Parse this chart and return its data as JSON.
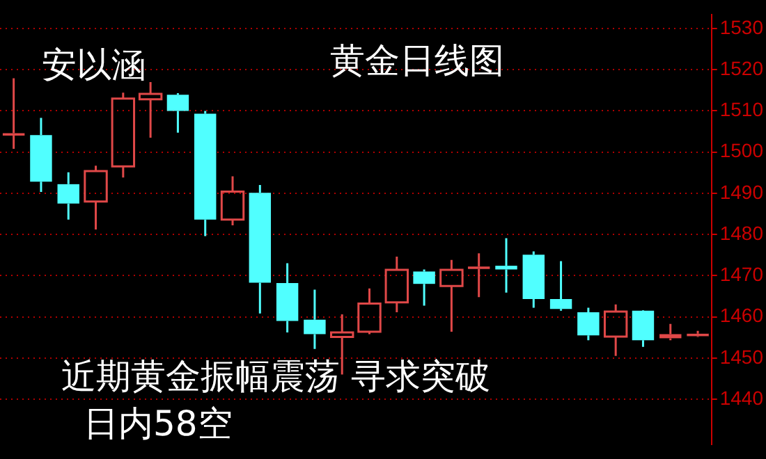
{
  "chart_data": {
    "type": "candlestick",
    "title": "黄金日线图",
    "annotations": [
      "安以涵",
      "近期黄金振幅震荡 寻求突破",
      "日内58空"
    ],
    "categories": [
      null,
      null,
      null,
      null,
      null,
      null,
      null,
      null,
      null,
      null,
      null,
      null,
      null,
      null,
      null,
      null,
      null,
      null,
      null,
      null,
      null,
      null,
      null,
      null,
      null,
      null
    ],
    "ohlc": [
      [
        1504.0,
        1517.9,
        1500.8,
        1504.6
      ],
      [
        1504.1,
        1508.3,
        1490.3,
        1492.8
      ],
      [
        1492.2,
        1495.1,
        1483.6,
        1487.5
      ],
      [
        1488.0,
        1496.7,
        1481.2,
        1495.4
      ],
      [
        1496.5,
        1514.4,
        1493.8,
        1513.0
      ],
      [
        1512.8,
        1517.0,
        1503.5,
        1514.1
      ],
      [
        1513.9,
        1514.3,
        1504.7,
        1510.0
      ],
      [
        1509.3,
        1510.0,
        1479.6,
        1483.6
      ],
      [
        1483.6,
        1494.1,
        1482.2,
        1490.4
      ],
      [
        1490.1,
        1492.0,
        1460.8,
        1468.3
      ],
      [
        1468.2,
        1473.0,
        1456.2,
        1459.0
      ],
      [
        1459.3,
        1466.6,
        1452.2,
        1455.8
      ],
      [
        1455.1,
        1460.6,
        1446.0,
        1456.2
      ],
      [
        1456.4,
        1466.9,
        1455.8,
        1463.2
      ],
      [
        1463.5,
        1474.6,
        1461.1,
        1471.4
      ],
      [
        1471.0,
        1471.5,
        1462.7,
        1468.0
      ],
      [
        1467.5,
        1473.8,
        1456.4,
        1471.4
      ],
      [
        1471.6,
        1475.4,
        1464.8,
        1472.2
      ],
      [
        1472.4,
        1479.1,
        1465.9,
        1471.5
      ],
      [
        1475.1,
        1475.9,
        1462.2,
        1464.3
      ],
      [
        1464.3,
        1473.5,
        1461.5,
        1461.9
      ],
      [
        1461.1,
        1462.2,
        1454.3,
        1455.5
      ],
      [
        1455.2,
        1463.0,
        1450.5,
        1461.3
      ],
      [
        1461.5,
        1461.6,
        1452.7,
        1454.3
      ],
      [
        1454.8,
        1458.3,
        1454.3,
        1455.8
      ],
      [
        1455.3,
        1456.6,
        1455.1,
        1455.9
      ]
    ],
    "colors": [
      "#e04848",
      "#50ffff",
      "#50ffff",
      "#e04848",
      "#e04848",
      "#e04848",
      "#50ffff",
      "#50ffff",
      "#e04848",
      "#50ffff",
      "#50ffff",
      "#50ffff",
      "#e04848",
      "#e04848",
      "#e04848",
      "#50ffff",
      "#e04848",
      "#e04848",
      "#50ffff",
      "#50ffff",
      "#50ffff",
      "#50ffff",
      "#e04848",
      "#50ffff",
      "#e04848",
      "#e04848"
    ],
    "ylim": [
      1429,
      1533.4
    ],
    "yticks": [
      1440,
      1450,
      1460,
      1470,
      1480,
      1490,
      1500,
      1510,
      1520,
      1530
    ],
    "grid": "y",
    "tick_labels": "y"
  }
}
